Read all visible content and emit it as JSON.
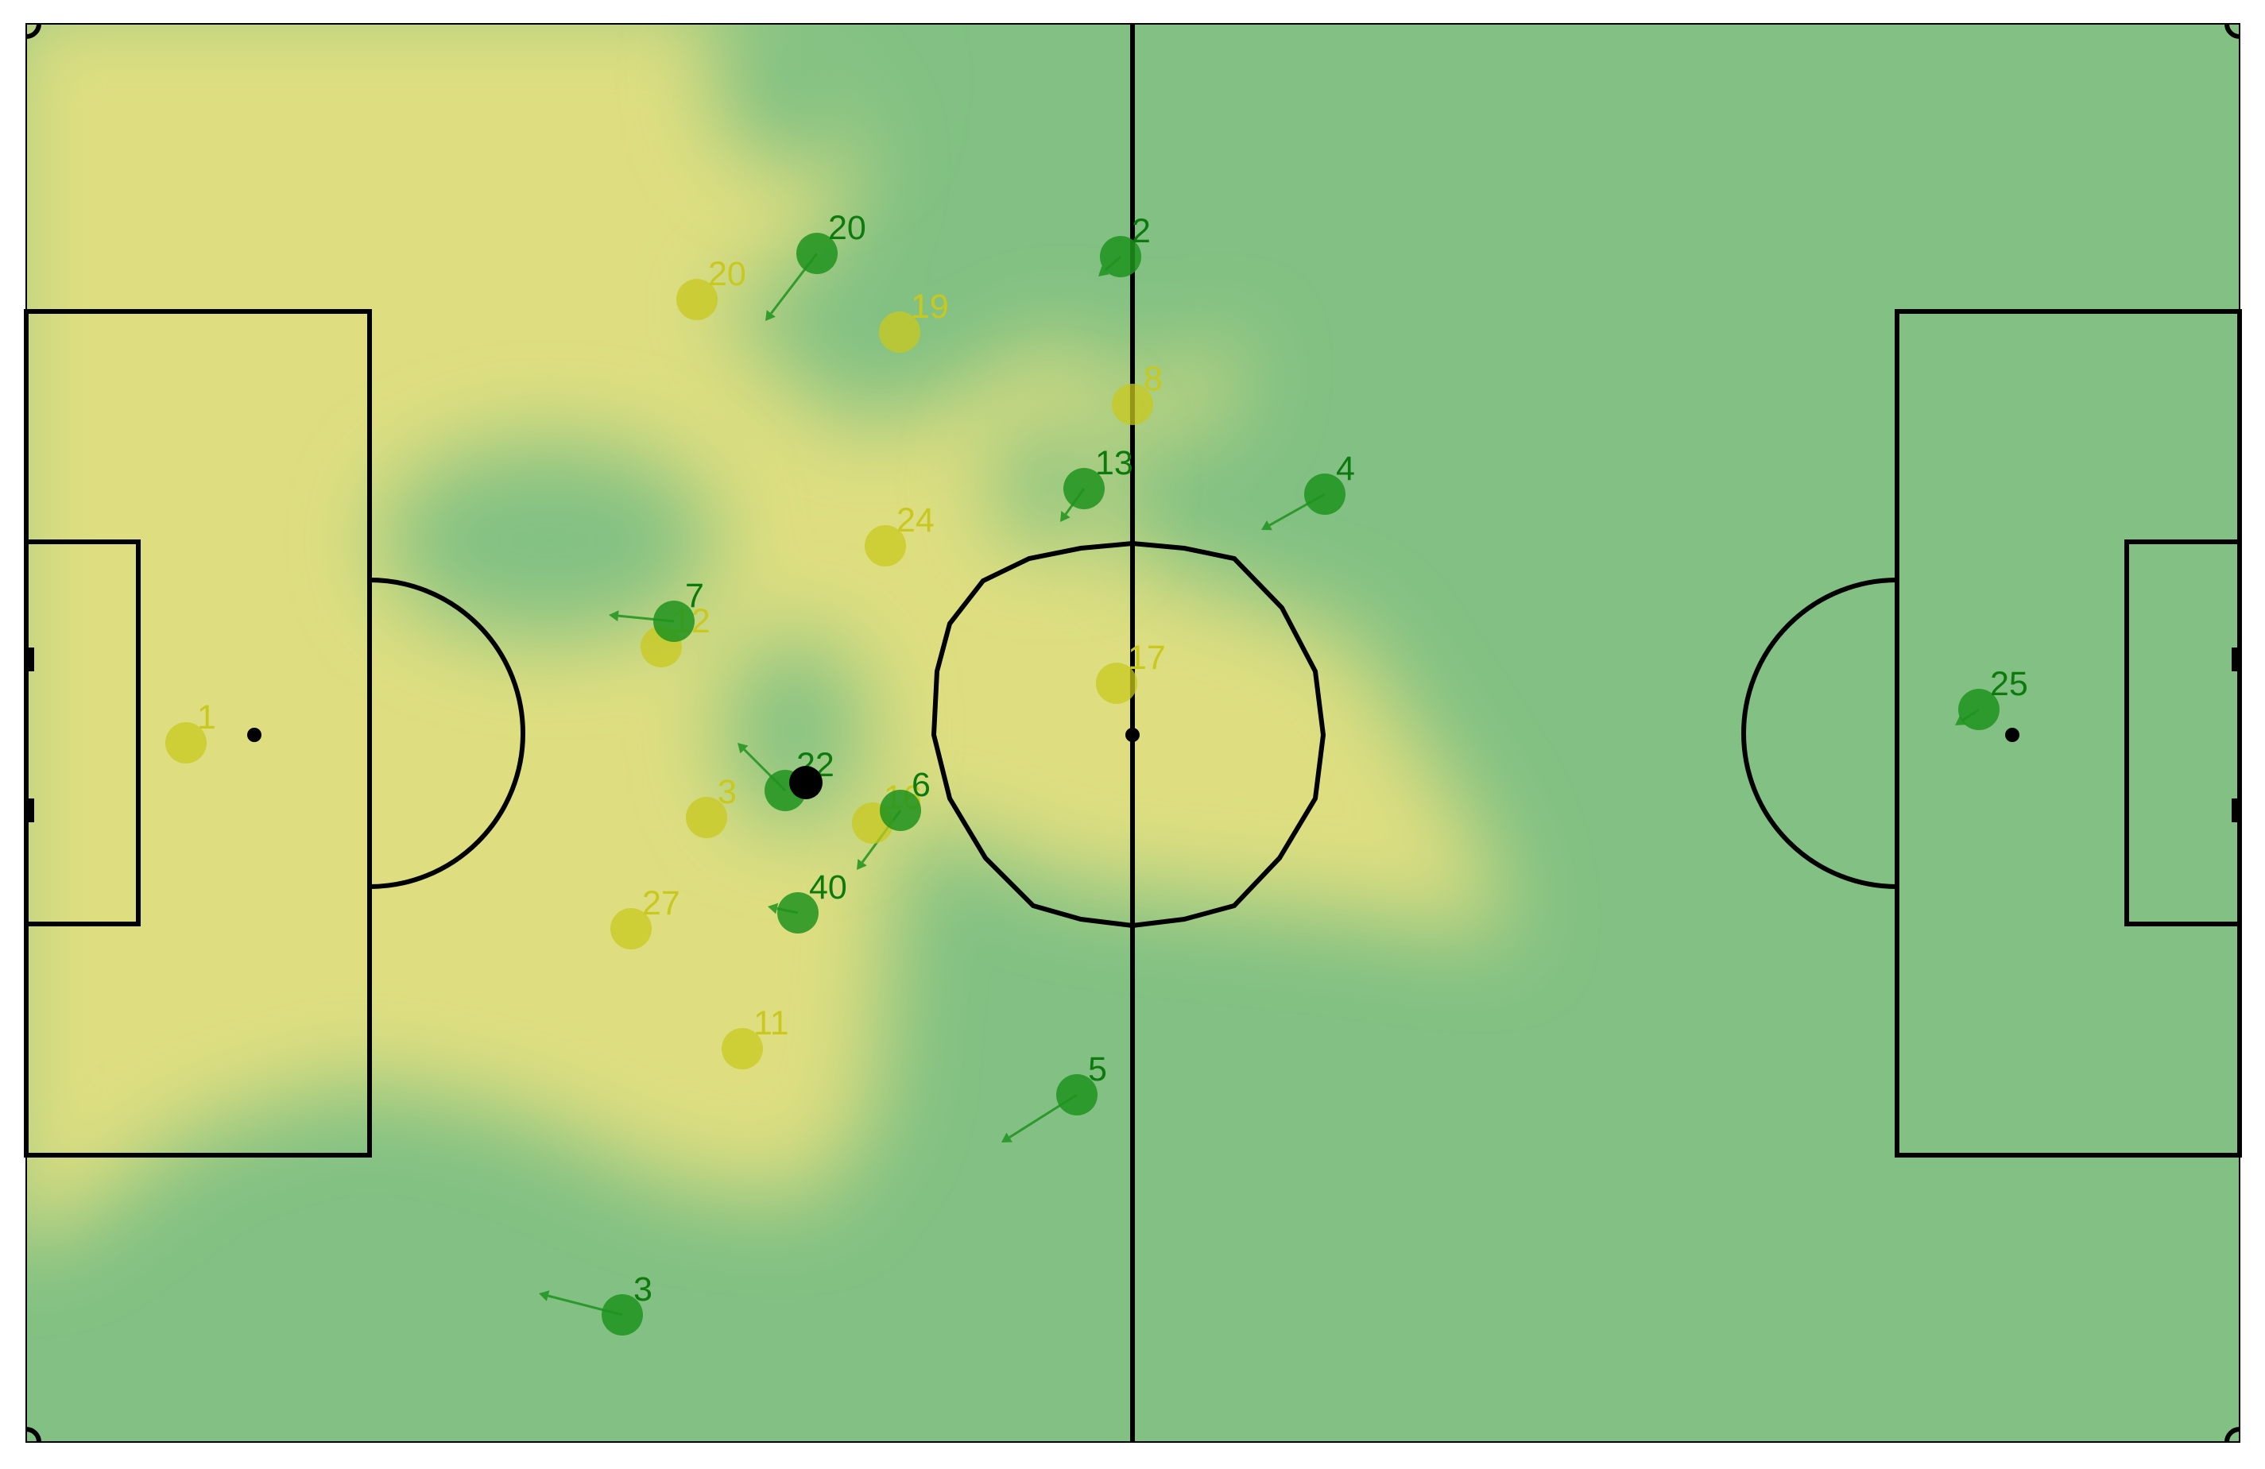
{
  "colors": {
    "home": "#c8c81e",
    "home_label": "#c8c81e",
    "away": "#1f931f",
    "away_label": "#0d7a0d",
    "home_zone": "#dede80",
    "away_zone": "#82c183",
    "lines": "#000000",
    "ball": "#000000"
  },
  "home_players": [
    {
      "number": "1"
    },
    {
      "number": "20"
    },
    {
      "number": "19"
    },
    {
      "number": "8"
    },
    {
      "number": "24"
    },
    {
      "number": "12"
    },
    {
      "number": "17"
    },
    {
      "number": "3"
    },
    {
      "number": "16"
    },
    {
      "number": "27"
    },
    {
      "number": "11"
    }
  ],
  "away_players": [
    {
      "number": "20"
    },
    {
      "number": "2"
    },
    {
      "number": "13"
    },
    {
      "number": "4"
    },
    {
      "number": "7"
    },
    {
      "number": "22"
    },
    {
      "number": "6"
    },
    {
      "number": "40"
    },
    {
      "number": "5"
    },
    {
      "number": "3"
    },
    {
      "number": "25"
    }
  ]
}
